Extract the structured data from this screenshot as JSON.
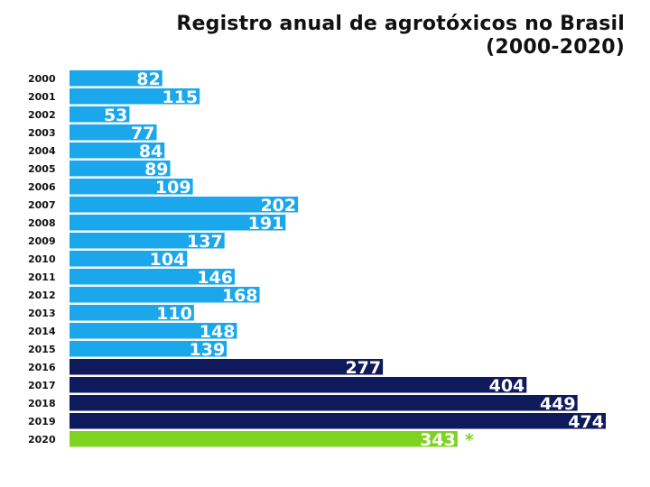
{
  "chart_data": {
    "type": "bar",
    "orientation": "horizontal",
    "title_line1": "Registro anual de agrotóxicos no Brasil",
    "title_line2": "(2000-2020)",
    "categories": [
      "2000",
      "2001",
      "2002",
      "2003",
      "2004",
      "2005",
      "2006",
      "2007",
      "2008",
      "2009",
      "2010",
      "2011",
      "2012",
      "2013",
      "2014",
      "2015",
      "2016",
      "2017",
      "2018",
      "2019",
      "2020"
    ],
    "values": [
      82,
      115,
      53,
      77,
      84,
      89,
      109,
      202,
      191,
      137,
      104,
      146,
      168,
      110,
      148,
      139,
      277,
      404,
      449,
      474,
      343
    ],
    "annotation": {
      "category": "2020",
      "text": "*"
    },
    "colors": {
      "2000-2015": "#1aa7ec",
      "2016-2019": "#0f1a5c",
      "2020": "#7ed321"
    },
    "xlim": [
      0,
      474
    ],
    "grid": false,
    "legend": "none"
  }
}
